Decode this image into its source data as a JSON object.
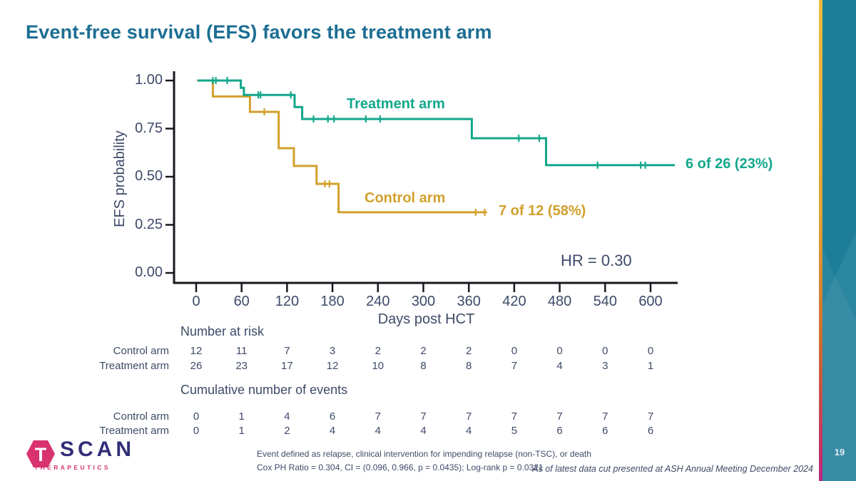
{
  "slide": {
    "title": "Event-free survival (EFS) favors the treatment arm",
    "page_number": "19",
    "footnote_line1": "Event defined as relapse, clinical intervention for impending relapse (non-TSC), or death",
    "footnote_line2": "Cox PH Ratio = 0.304, CI = (0.096, 0.966, p = 0.0435); Log-rank p = 0.0321",
    "source_note": "As of latest data cut presented at ASH Annual Meeting December 2024"
  },
  "logo": {
    "t": "T",
    "scan": "SCAN",
    "subtitle": "THERAPEUTICS",
    "hex_color": "#d8336f",
    "scan_color": "#322e78"
  },
  "chart_data": {
    "type": "line",
    "subtype": "kaplan-meier-step",
    "title": "",
    "xlabel": "Days post HCT",
    "ylabel": "EFS probability",
    "xlim": [
      0,
      600
    ],
    "ylim": [
      0,
      1
    ],
    "xticks": [
      0,
      60,
      120,
      180,
      240,
      300,
      360,
      420,
      480,
      540,
      600
    ],
    "yticks": [
      "0.00",
      "0.25",
      "0.50",
      "0.75",
      "1.00"
    ],
    "grid": false,
    "annotation": "HR = 0.30",
    "series": [
      {
        "name": "Control arm",
        "color": "#d2a02c",
        "end_label": "7 of 12 (58%)",
        "steps": [
          [
            1,
            1.0
          ],
          [
            22,
            1.0
          ],
          [
            22,
            0.917
          ],
          [
            71,
            0.917
          ],
          [
            71,
            0.837
          ],
          [
            109,
            0.837
          ],
          [
            109,
            0.648
          ],
          [
            129,
            0.648
          ],
          [
            129,
            0.556
          ],
          [
            159,
            0.556
          ],
          [
            159,
            0.463
          ],
          [
            188,
            0.463
          ],
          [
            188,
            0.315
          ],
          [
            384,
            0.315
          ]
        ],
        "censors": [
          [
            90,
            0.837
          ],
          [
            170,
            0.463
          ],
          [
            176,
            0.463
          ],
          [
            369,
            0.315
          ],
          [
            381,
            0.315
          ]
        ]
      },
      {
        "name": "Treatment arm",
        "color": "#12a78b",
        "end_label": "6 of 26 (23%)",
        "steps": [
          [
            2,
            1.0
          ],
          [
            59,
            1.0
          ],
          [
            59,
            0.962
          ],
          [
            63,
            0.962
          ],
          [
            63,
            0.925
          ],
          [
            130,
            0.925
          ],
          [
            130,
            0.862
          ],
          [
            140,
            0.862
          ],
          [
            140,
            0.8
          ],
          [
            364,
            0.8
          ],
          [
            364,
            0.7
          ],
          [
            462,
            0.7
          ],
          [
            462,
            0.56
          ],
          [
            632,
            0.56
          ]
        ],
        "censors": [
          [
            22,
            1.0
          ],
          [
            26,
            1.0
          ],
          [
            41,
            1.0
          ],
          [
            82,
            0.925
          ],
          [
            85,
            0.925
          ],
          [
            125,
            0.925
          ],
          [
            155,
            0.8
          ],
          [
            174,
            0.8
          ],
          [
            182,
            0.8
          ],
          [
            224,
            0.8
          ],
          [
            243,
            0.8
          ],
          [
            426,
            0.7
          ],
          [
            453,
            0.7
          ],
          [
            530,
            0.56
          ],
          [
            587,
            0.56
          ],
          [
            593,
            0.56
          ]
        ]
      }
    ]
  },
  "risk_table": {
    "heading": "Number at risk",
    "rows": [
      {
        "label": "Control arm",
        "values": [
          12,
          11,
          7,
          3,
          2,
          2,
          2,
          0,
          0,
          0,
          0
        ]
      },
      {
        "label": "Treatment arm",
        "values": [
          26,
          23,
          17,
          12,
          10,
          8,
          8,
          7,
          4,
          3,
          1
        ]
      }
    ]
  },
  "events_table": {
    "heading": "Cumulative number of events",
    "rows": [
      {
        "label": "Control arm",
        "values": [
          0,
          1,
          4,
          6,
          7,
          7,
          7,
          7,
          7,
          7,
          7
        ]
      },
      {
        "label": "Treatment arm",
        "values": [
          0,
          1,
          2,
          4,
          4,
          4,
          4,
          5,
          6,
          6,
          6
        ]
      }
    ]
  }
}
